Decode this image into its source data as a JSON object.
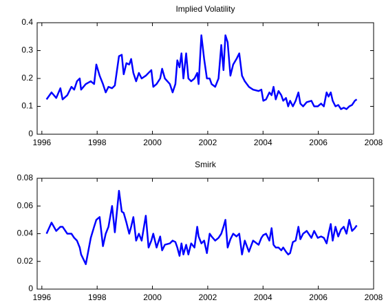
{
  "chart_data": [
    {
      "type": "line",
      "title": "Implied Volatility",
      "x": [
        1996.17,
        1996.35,
        1996.52,
        1996.67,
        1996.75,
        1996.92,
        1997.07,
        1997.17,
        1997.27,
        1997.37,
        1997.42,
        1997.59,
        1997.77,
        1997.89,
        1997.97,
        1998.09,
        1998.21,
        1998.31,
        1998.41,
        1998.54,
        1998.64,
        1998.79,
        1998.89,
        1998.96,
        1999.06,
        1999.16,
        1999.23,
        1999.31,
        1999.41,
        1999.51,
        1999.61,
        1999.76,
        1999.86,
        1999.96,
        2000.03,
        2000.15,
        2000.28,
        2000.35,
        2000.45,
        2000.63,
        2000.73,
        2000.83,
        2000.9,
        2000.98,
        2001.05,
        2001.12,
        2001.22,
        2001.3,
        2001.4,
        2001.52,
        2001.62,
        2001.67,
        2001.77,
        2001.87,
        2001.97,
        2002.07,
        2002.14,
        2002.27,
        2002.39,
        2002.49,
        2002.57,
        2002.64,
        2002.72,
        2002.82,
        2002.92,
        2003.04,
        2003.14,
        2003.24,
        2003.34,
        2003.49,
        2003.64,
        2003.84,
        2003.94,
        2004.01,
        2004.11,
        2004.23,
        2004.31,
        2004.38,
        2004.46,
        2004.56,
        2004.66,
        2004.73,
        2004.83,
        2004.91,
        2004.98,
        2005.08,
        2005.18,
        2005.28,
        2005.35,
        2005.45,
        2005.58,
        2005.75,
        2005.85,
        2005.98,
        2006.1,
        2006.2,
        2006.3,
        2006.37,
        2006.45,
        2006.52,
        2006.62,
        2006.72,
        2006.82,
        2006.92,
        2007.02,
        2007.12,
        2007.22,
        2007.32,
        2007.39
      ],
      "values": [
        0.125,
        0.15,
        0.13,
        0.165,
        0.125,
        0.14,
        0.17,
        0.16,
        0.19,
        0.2,
        0.16,
        0.18,
        0.19,
        0.18,
        0.25,
        0.21,
        0.18,
        0.15,
        0.17,
        0.165,
        0.175,
        0.28,
        0.285,
        0.215,
        0.255,
        0.25,
        0.27,
        0.22,
        0.19,
        0.22,
        0.2,
        0.21,
        0.22,
        0.23,
        0.17,
        0.18,
        0.2,
        0.235,
        0.2,
        0.18,
        0.15,
        0.18,
        0.265,
        0.24,
        0.29,
        0.2,
        0.29,
        0.2,
        0.19,
        0.2,
        0.22,
        0.18,
        0.355,
        0.27,
        0.2,
        0.2,
        0.18,
        0.17,
        0.2,
        0.32,
        0.23,
        0.355,
        0.33,
        0.21,
        0.25,
        0.27,
        0.29,
        0.21,
        0.19,
        0.17,
        0.16,
        0.155,
        0.16,
        0.12,
        0.125,
        0.15,
        0.14,
        0.17,
        0.125,
        0.155,
        0.14,
        0.12,
        0.13,
        0.1,
        0.12,
        0.1,
        0.12,
        0.15,
        0.11,
        0.1,
        0.115,
        0.12,
        0.1,
        0.1,
        0.11,
        0.1,
        0.15,
        0.135,
        0.15,
        0.12,
        0.1,
        0.105,
        0.09,
        0.095,
        0.09,
        0.1,
        0.105,
        0.12,
        0.125
      ],
      "color": "#0000ff",
      "xlim": [
        1995.83,
        2008
      ],
      "xticks": [
        1996,
        1998,
        2000,
        2002,
        2004,
        2006,
        2008
      ],
      "ylim": [
        0,
        0.4
      ],
      "yticks": [
        0,
        0.1,
        0.2,
        0.3,
        0.4
      ]
    },
    {
      "type": "line",
      "title": "Smirk",
      "x": [
        1996.17,
        1996.35,
        1996.52,
        1996.67,
        1996.75,
        1996.92,
        1997.07,
        1997.17,
        1997.27,
        1997.37,
        1997.42,
        1997.59,
        1997.77,
        1997.89,
        1997.97,
        1998.09,
        1998.21,
        1998.31,
        1998.41,
        1998.54,
        1998.64,
        1998.79,
        1998.89,
        1998.96,
        1999.06,
        1999.16,
        1999.23,
        1999.31,
        1999.41,
        1999.51,
        1999.61,
        1999.76,
        1999.86,
        1999.96,
        2000.03,
        2000.15,
        2000.28,
        2000.35,
        2000.45,
        2000.63,
        2000.73,
        2000.83,
        2000.9,
        2000.98,
        2001.05,
        2001.12,
        2001.22,
        2001.3,
        2001.4,
        2001.52,
        2001.62,
        2001.67,
        2001.77,
        2001.87,
        2001.97,
        2002.07,
        2002.14,
        2002.27,
        2002.39,
        2002.49,
        2002.57,
        2002.64,
        2002.72,
        2002.82,
        2002.92,
        2003.04,
        2003.14,
        2003.24,
        2003.34,
        2003.49,
        2003.64,
        2003.84,
        2003.94,
        2004.01,
        2004.11,
        2004.23,
        2004.31,
        2004.38,
        2004.46,
        2004.56,
        2004.66,
        2004.73,
        2004.83,
        2004.91,
        2004.98,
        2005.08,
        2005.18,
        2005.28,
        2005.35,
        2005.45,
        2005.58,
        2005.75,
        2005.85,
        2005.98,
        2006.1,
        2006.2,
        2006.3,
        2006.37,
        2006.45,
        2006.52,
        2006.62,
        2006.72,
        2006.82,
        2006.92,
        2007.02,
        2007.12,
        2007.22,
        2007.32,
        2007.39
      ],
      "values": [
        0.04,
        0.048,
        0.042,
        0.045,
        0.045,
        0.04,
        0.04,
        0.037,
        0.035,
        0.03,
        0.025,
        0.018,
        0.037,
        0.045,
        0.05,
        0.052,
        0.031,
        0.04,
        0.045,
        0.06,
        0.041,
        0.071,
        0.056,
        0.055,
        0.048,
        0.04,
        0.045,
        0.052,
        0.035,
        0.04,
        0.035,
        0.053,
        0.03,
        0.035,
        0.04,
        0.03,
        0.038,
        0.028,
        0.032,
        0.033,
        0.035,
        0.034,
        0.03,
        0.024,
        0.033,
        0.025,
        0.032,
        0.025,
        0.033,
        0.03,
        0.045,
        0.038,
        0.033,
        0.035,
        0.026,
        0.04,
        0.038,
        0.035,
        0.037,
        0.04,
        0.045,
        0.05,
        0.03,
        0.036,
        0.04,
        0.038,
        0.04,
        0.025,
        0.035,
        0.027,
        0.035,
        0.032,
        0.037,
        0.039,
        0.04,
        0.035,
        0.044,
        0.032,
        0.03,
        0.03,
        0.028,
        0.03,
        0.027,
        0.025,
        0.026,
        0.034,
        0.035,
        0.045,
        0.036,
        0.04,
        0.042,
        0.037,
        0.042,
        0.037,
        0.038,
        0.037,
        0.033,
        0.04,
        0.047,
        0.035,
        0.045,
        0.038,
        0.043,
        0.045,
        0.04,
        0.05,
        0.042,
        0.044,
        0.046
      ],
      "color": "#0000ff",
      "xlim": [
        1995.83,
        2008
      ],
      "xticks": [
        1996,
        1998,
        2000,
        2002,
        2004,
        2006,
        2008
      ],
      "ylim": [
        0,
        0.08
      ],
      "yticks": [
        0,
        0.02,
        0.04,
        0.06,
        0.08
      ]
    }
  ]
}
